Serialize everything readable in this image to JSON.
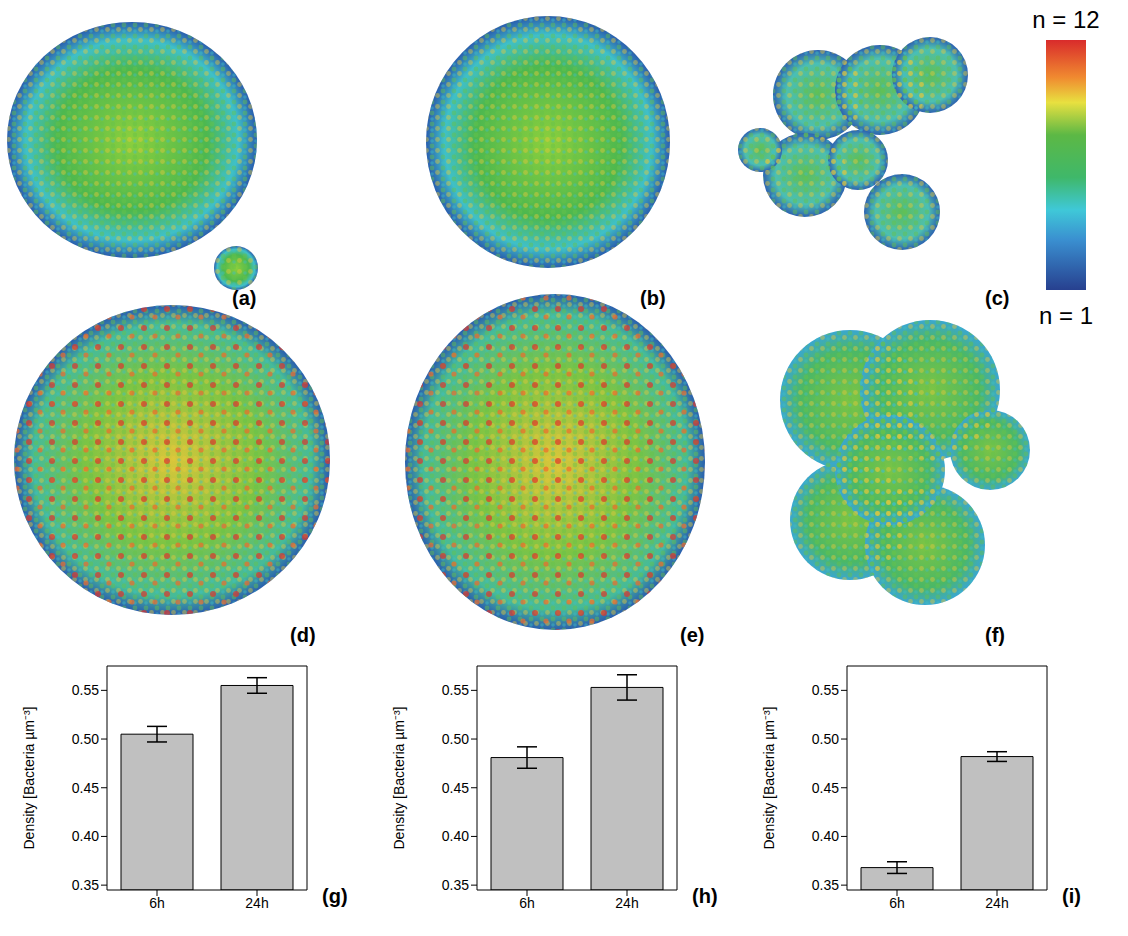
{
  "images": [
    {
      "label": "(a)"
    },
    {
      "label": "(b)"
    },
    {
      "label": "(c)"
    },
    {
      "label": "(d)"
    },
    {
      "label": "(e)"
    },
    {
      "label": "(f)"
    }
  ],
  "colorbar": {
    "range": [
      1,
      12
    ],
    "top_label": "n = 12",
    "bottom_label": "n = 1"
  },
  "chart_data": [
    {
      "type": "bar",
      "label": "(g)",
      "ylabel": "Density [Bacteria µm⁻³]",
      "categories": [
        "6h",
        "24h"
      ],
      "values": [
        0.505,
        0.555
      ],
      "errors": [
        0.008,
        0.008
      ],
      "color": "#c0c0c0",
      "ylim": [
        0.345,
        0.575
      ],
      "yticks": [
        0.35,
        {
          "value": 0.4,
          "label": "0.40"
        },
        0.45,
        {
          "value": 0.5,
          "label": "0.50"
        },
        0.55
      ]
    },
    {
      "type": "bar",
      "label": "(h)",
      "ylabel": "Density [Bacteria µm⁻³]",
      "categories": [
        "6h",
        "24h"
      ],
      "values": [
        0.481,
        0.553
      ],
      "errors": [
        0.011,
        0.013
      ],
      "color": "#c0c0c0",
      "ylim": [
        0.345,
        0.575
      ],
      "yticks": [
        0.35,
        {
          "value": 0.4,
          "label": "0.40"
        },
        0.45,
        {
          "value": 0.5,
          "label": "0.50"
        },
        0.55
      ]
    },
    {
      "type": "bar",
      "label": "(i)",
      "ylabel": "Density [Bacteria µm⁻³]",
      "categories": [
        "6h",
        "24h"
      ],
      "values": [
        0.368,
        0.482
      ],
      "errors": [
        0.006,
        0.005
      ],
      "color": "#c0c0c0",
      "ylim": [
        0.345,
        0.575
      ],
      "yticks": [
        0.35,
        {
          "value": 0.4,
          "label": "0.40"
        },
        0.45,
        {
          "value": 0.5,
          "label": "0.50"
        },
        0.55
      ]
    }
  ]
}
